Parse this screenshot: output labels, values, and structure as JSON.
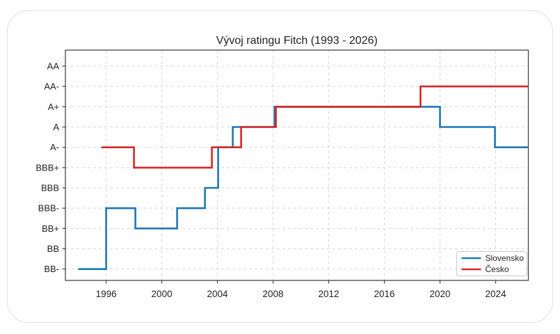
{
  "card": {
    "background": "#ffffff",
    "border_color": "#dde0e6"
  },
  "chart_data": {
    "type": "line",
    "subtype": "step",
    "title": "Vývoj ratingu Fitch (1993 - 2026)",
    "xlabel": "",
    "ylabel": "",
    "grid": true,
    "grid_color": "#d8d8d8",
    "spine_color": "#454545",
    "text_color": "#222222",
    "x_axis": {
      "ticks": [
        1996,
        2000,
        2004,
        2008,
        2012,
        2016,
        2020,
        2024
      ],
      "range": [
        1993.07,
        2026.35
      ]
    },
    "y_axis": {
      "categories": [
        "BB-",
        "BB",
        "BB+",
        "BBB-",
        "BBB",
        "BBB+",
        "A-",
        "A",
        "A+",
        "AA-",
        "AA"
      ],
      "range_idx": [
        -0.56,
        10.79
      ]
    },
    "legend": {
      "position": "lower right",
      "entries": [
        {
          "label": "Slovensko",
          "color": "#1f77b4"
        },
        {
          "label": "Česko",
          "color": "#d62728"
        }
      ]
    },
    "series": [
      {
        "name": "Slovensko",
        "color": "#1f77b4",
        "end_year": 2026.35,
        "points": [
          {
            "year": 1994.0,
            "rating": "BB-"
          },
          {
            "year": 1996.0,
            "rating": "BBB-"
          },
          {
            "year": 1998.1,
            "rating": "BB+"
          },
          {
            "year": 2001.1,
            "rating": "BBB-"
          },
          {
            "year": 2003.1,
            "rating": "BBB"
          },
          {
            "year": 2004.05,
            "rating": "A-"
          },
          {
            "year": 2005.1,
            "rating": "A"
          },
          {
            "year": 2008.1,
            "rating": "A+"
          },
          {
            "year": 2020.0,
            "rating": "A"
          },
          {
            "year": 2023.95,
            "rating": "A-"
          }
        ]
      },
      {
        "name": "Česko",
        "color": "#d62728",
        "end_year": 2026.35,
        "points": [
          {
            "year": 1995.65,
            "rating": "A-"
          },
          {
            "year": 1998.0,
            "rating": "BBB+"
          },
          {
            "year": 2003.6,
            "rating": "A-"
          },
          {
            "year": 2005.7,
            "rating": "A"
          },
          {
            "year": 2008.2,
            "rating": "A+"
          },
          {
            "year": 2018.6,
            "rating": "AA-"
          }
        ]
      }
    ]
  }
}
